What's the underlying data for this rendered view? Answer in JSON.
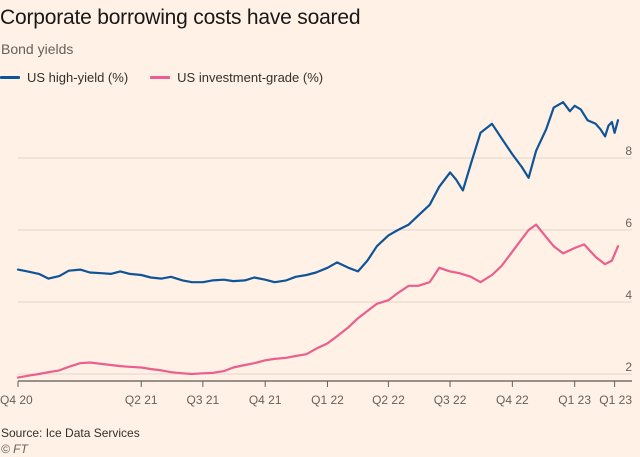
{
  "title": "Corporate borrowing costs have soared",
  "subtitle": "Bond yields",
  "source": "Source: Ice Data Services",
  "credit": "© FT",
  "colors": {
    "background": "#fff1e5",
    "high_yield": "#0f5499",
    "investment_grade": "#eb5e8d",
    "grid": "#e0d6cc"
  },
  "chart_data": {
    "type": "line",
    "title": "Corporate borrowing costs have soared",
    "subtitle": "Bond yields",
    "x_tick_labels": [
      "Q4 20",
      "Q2 21",
      "Q3 21",
      "Q4 21",
      "Q1 22",
      "Q2 22",
      "Q3 22",
      "Q4 22",
      "Q1 23",
      "Q1 23"
    ],
    "x_ticks": [
      "2020-10-01",
      "2021-04-01",
      "2021-07-01",
      "2021-10-01",
      "2022-01-01",
      "2022-04-01",
      "2022-07-01",
      "2022-10-01",
      "2023-01-01",
      "2023-03-01"
    ],
    "y_ticks": [
      2,
      4,
      6,
      8
    ],
    "ylim": [
      2,
      10
    ],
    "xlim": [
      "2020-10-01",
      "2023-03-06"
    ],
    "grid": "horizontal",
    "legend_position": "top-left",
    "series": [
      {
        "name": "US high-yield (%)",
        "color": "#0f5499",
        "points": [
          [
            "2020-10-01",
            4.9
          ],
          [
            "2020-10-15",
            4.85
          ],
          [
            "2020-11-01",
            4.78
          ],
          [
            "2020-11-15",
            4.65
          ],
          [
            "2020-12-01",
            4.72
          ],
          [
            "2020-12-15",
            4.87
          ],
          [
            "2021-01-01",
            4.9
          ],
          [
            "2021-01-15",
            4.82
          ],
          [
            "2021-02-01",
            4.8
          ],
          [
            "2021-02-15",
            4.78
          ],
          [
            "2021-03-01",
            4.85
          ],
          [
            "2021-03-15",
            4.78
          ],
          [
            "2021-04-01",
            4.75
          ],
          [
            "2021-04-15",
            4.68
          ],
          [
            "2021-05-01",
            4.65
          ],
          [
            "2021-05-15",
            4.7
          ],
          [
            "2021-06-01",
            4.6
          ],
          [
            "2021-06-15",
            4.55
          ],
          [
            "2021-07-01",
            4.55
          ],
          [
            "2021-07-15",
            4.6
          ],
          [
            "2021-08-01",
            4.62
          ],
          [
            "2021-08-15",
            4.58
          ],
          [
            "2021-09-01",
            4.6
          ],
          [
            "2021-09-15",
            4.68
          ],
          [
            "2021-10-01",
            4.62
          ],
          [
            "2021-10-15",
            4.55
          ],
          [
            "2021-11-01",
            4.6
          ],
          [
            "2021-11-15",
            4.7
          ],
          [
            "2021-12-01",
            4.75
          ],
          [
            "2021-12-15",
            4.82
          ],
          [
            "2022-01-01",
            4.95
          ],
          [
            "2022-01-15",
            5.1
          ],
          [
            "2022-02-01",
            4.95
          ],
          [
            "2022-02-15",
            4.85
          ],
          [
            "2022-03-01",
            5.15
          ],
          [
            "2022-03-15",
            5.55
          ],
          [
            "2022-04-01",
            5.85
          ],
          [
            "2022-04-15",
            6.0
          ],
          [
            "2022-05-01",
            6.15
          ],
          [
            "2022-05-15",
            6.4
          ],
          [
            "2022-06-01",
            6.7
          ],
          [
            "2022-06-15",
            7.2
          ],
          [
            "2022-07-01",
            7.6
          ],
          [
            "2022-07-10",
            7.4
          ],
          [
            "2022-07-20",
            7.1
          ],
          [
            "2022-08-01",
            7.85
          ],
          [
            "2022-08-15",
            8.7
          ],
          [
            "2022-09-01",
            8.95
          ],
          [
            "2022-09-15",
            8.55
          ],
          [
            "2022-10-01",
            8.1
          ],
          [
            "2022-10-15",
            7.75
          ],
          [
            "2022-10-25",
            7.45
          ],
          [
            "2022-11-05",
            8.2
          ],
          [
            "2022-11-20",
            8.8
          ],
          [
            "2022-12-01",
            9.4
          ],
          [
            "2022-12-15",
            9.55
          ],
          [
            "2022-12-25",
            9.3
          ],
          [
            "2023-01-01",
            9.45
          ],
          [
            "2023-01-10",
            9.35
          ],
          [
            "2023-01-20",
            9.05
          ],
          [
            "2023-02-01",
            8.95
          ],
          [
            "2023-02-08",
            8.8
          ],
          [
            "2023-02-15",
            8.6
          ],
          [
            "2023-02-20",
            8.9
          ],
          [
            "2023-02-25",
            9.0
          ],
          [
            "2023-03-01",
            8.7
          ],
          [
            "2023-03-06",
            9.05
          ]
        ]
      },
      {
        "name": "US investment-grade (%)",
        "color": "#eb5e8d",
        "points": [
          [
            "2020-10-01",
            1.9
          ],
          [
            "2020-10-15",
            1.95
          ],
          [
            "2020-11-01",
            2.0
          ],
          [
            "2020-11-15",
            2.05
          ],
          [
            "2020-12-01",
            2.1
          ],
          [
            "2020-12-15",
            2.2
          ],
          [
            "2021-01-01",
            2.3
          ],
          [
            "2021-01-15",
            2.32
          ],
          [
            "2021-02-01",
            2.28
          ],
          [
            "2021-02-15",
            2.25
          ],
          [
            "2021-03-01",
            2.22
          ],
          [
            "2021-03-15",
            2.2
          ],
          [
            "2021-04-01",
            2.18
          ],
          [
            "2021-04-15",
            2.14
          ],
          [
            "2021-05-01",
            2.1
          ],
          [
            "2021-05-15",
            2.05
          ],
          [
            "2021-06-01",
            2.02
          ],
          [
            "2021-06-15",
            2.0
          ],
          [
            "2021-07-01",
            2.02
          ],
          [
            "2021-07-15",
            2.03
          ],
          [
            "2021-08-01",
            2.08
          ],
          [
            "2021-08-15",
            2.18
          ],
          [
            "2021-09-01",
            2.25
          ],
          [
            "2021-09-15",
            2.3
          ],
          [
            "2021-10-01",
            2.38
          ],
          [
            "2021-10-15",
            2.42
          ],
          [
            "2021-11-01",
            2.45
          ],
          [
            "2021-11-15",
            2.5
          ],
          [
            "2021-12-01",
            2.55
          ],
          [
            "2021-12-15",
            2.7
          ],
          [
            "2022-01-01",
            2.85
          ],
          [
            "2022-01-15",
            3.05
          ],
          [
            "2022-02-01",
            3.3
          ],
          [
            "2022-02-15",
            3.55
          ],
          [
            "2022-03-01",
            3.75
          ],
          [
            "2022-03-15",
            3.95
          ],
          [
            "2022-04-01",
            4.05
          ],
          [
            "2022-04-15",
            4.25
          ],
          [
            "2022-05-01",
            4.45
          ],
          [
            "2022-05-15",
            4.45
          ],
          [
            "2022-06-01",
            4.55
          ],
          [
            "2022-06-15",
            4.95
          ],
          [
            "2022-07-01",
            4.85
          ],
          [
            "2022-07-15",
            4.8
          ],
          [
            "2022-08-01",
            4.7
          ],
          [
            "2022-08-15",
            4.55
          ],
          [
            "2022-09-01",
            4.75
          ],
          [
            "2022-09-15",
            5.0
          ],
          [
            "2022-10-01",
            5.4
          ],
          [
            "2022-10-15",
            5.75
          ],
          [
            "2022-10-25",
            6.0
          ],
          [
            "2022-11-05",
            6.15
          ],
          [
            "2022-11-20",
            5.8
          ],
          [
            "2022-12-01",
            5.55
          ],
          [
            "2022-12-15",
            5.35
          ],
          [
            "2023-01-01",
            5.5
          ],
          [
            "2023-01-15",
            5.6
          ],
          [
            "2023-02-01",
            5.25
          ],
          [
            "2023-02-15",
            5.05
          ],
          [
            "2023-02-25",
            5.15
          ],
          [
            "2023-03-06",
            5.55
          ]
        ]
      }
    ]
  }
}
